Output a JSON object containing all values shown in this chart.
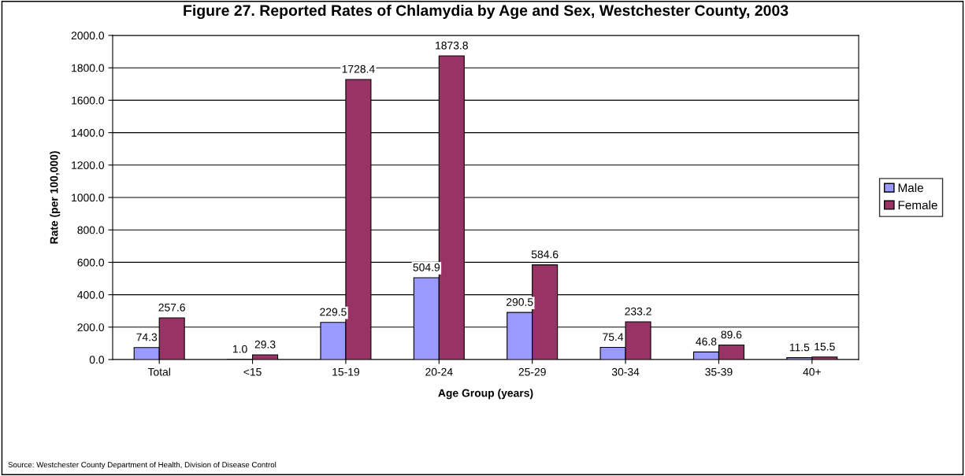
{
  "chart_data": {
    "type": "bar",
    "title": "Figure 27. Reported Rates of Chlamydia by Age and Sex, Westchester County, 2003",
    "xlabel": "Age Group (years)",
    "ylabel": "Rate (per 100,000)",
    "categories": [
      "Total",
      "<15",
      "15-19",
      "20-24",
      "25-29",
      "30-34",
      "35-39",
      "40+"
    ],
    "series": [
      {
        "name": "Male",
        "color": "#9999ff",
        "values": [
          74.3,
          1.0,
          229.5,
          504.9,
          290.5,
          75.4,
          46.8,
          11.5
        ],
        "value_labels": [
          "74.3",
          "1.0",
          "229.5",
          "504.9",
          "290.5",
          "75.4",
          "46.8",
          "11.5"
        ]
      },
      {
        "name": "Female",
        "color": "#993366",
        "values": [
          257.6,
          29.3,
          1728.4,
          1873.8,
          584.6,
          233.2,
          89.6,
          15.5
        ],
        "value_labels": [
          "257.6",
          "29.3",
          "1728.4",
          "1873.8",
          "584.6",
          "233.2",
          "89.6",
          "15.5"
        ]
      }
    ],
    "ylim": [
      0,
      2000
    ],
    "yticks": [
      {
        "value": 0,
        "label": "0.0"
      },
      {
        "value": 200,
        "label": "200.0"
      },
      {
        "value": 400,
        "label": "400.0"
      },
      {
        "value": 600,
        "label": "600.0"
      },
      {
        "value": 800,
        "label": "800.0"
      },
      {
        "value": 1000,
        "label": "1000.0"
      },
      {
        "value": 1200,
        "label": "1200.0"
      },
      {
        "value": 1400,
        "label": "1400.0"
      },
      {
        "value": 1600,
        "label": "1600.0"
      },
      {
        "value": 1800,
        "label": "1800.0"
      },
      {
        "value": 2000,
        "label": "2000.0"
      }
    ],
    "grid": "y",
    "legend": "right",
    "annotations": [
      "Source: Westchester County Department of Health, Division of Disease Control"
    ]
  }
}
